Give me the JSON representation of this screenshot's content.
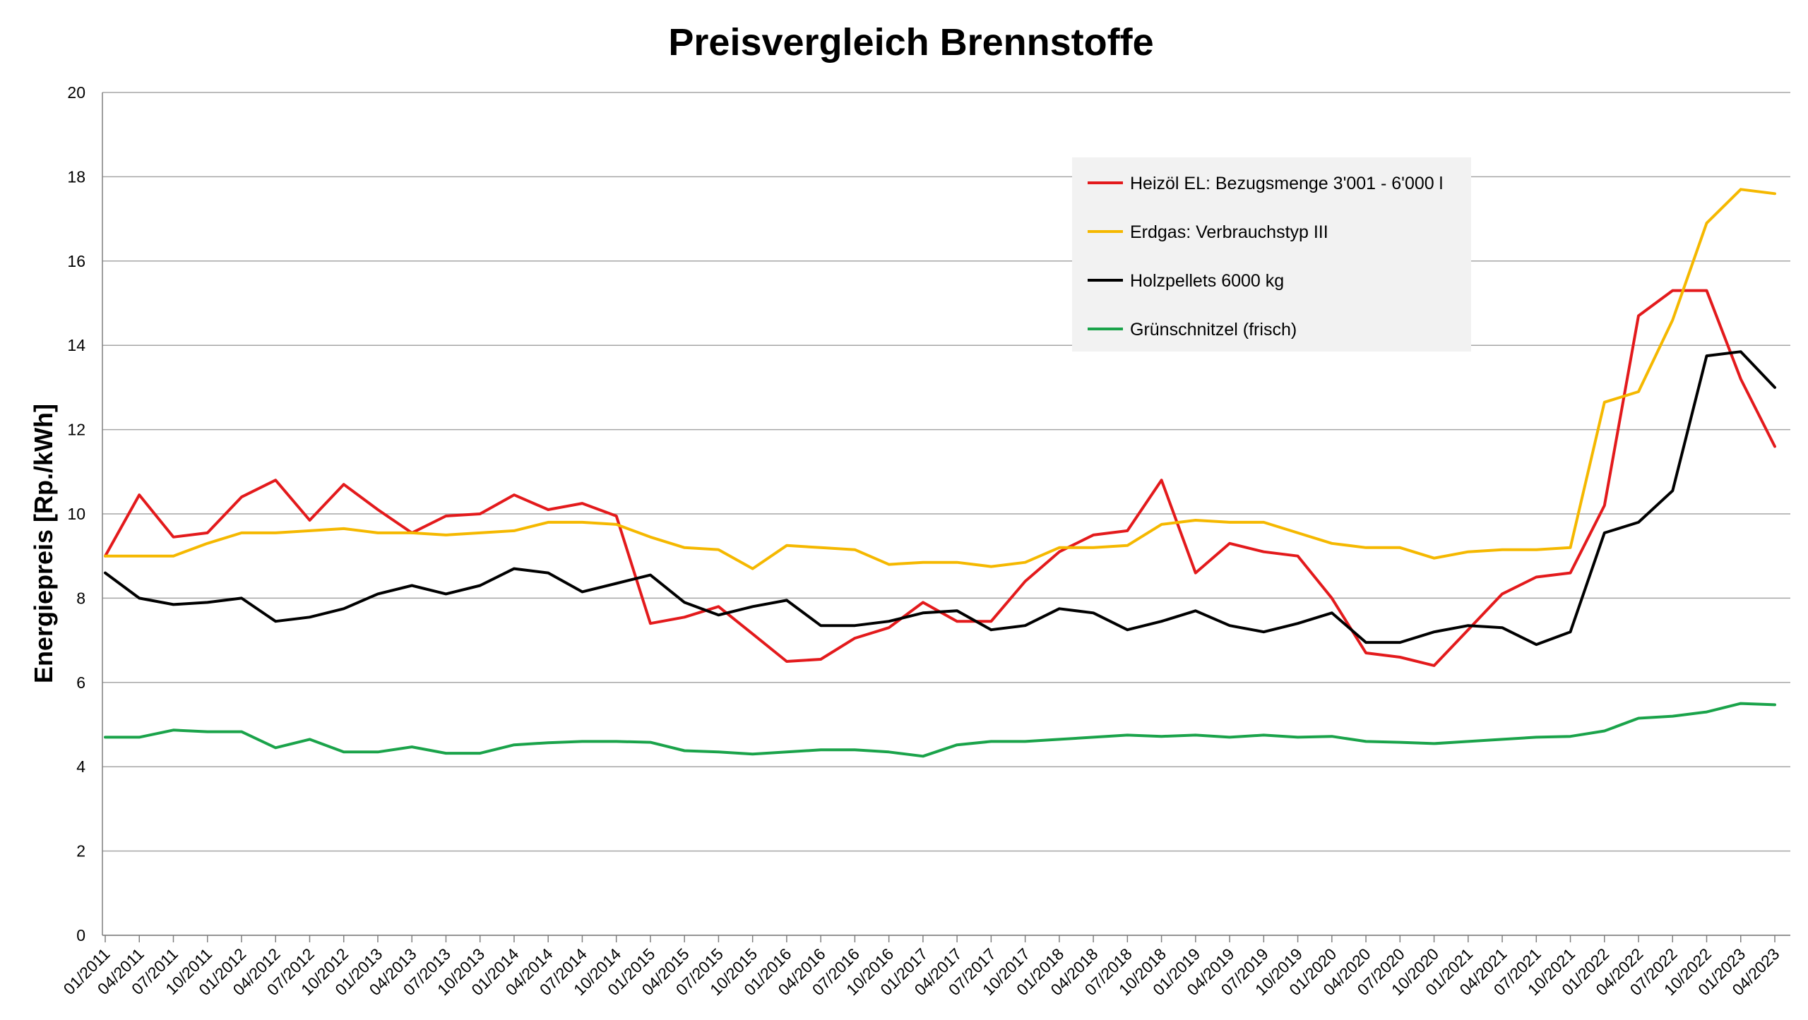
{
  "chart_data": {
    "type": "line",
    "title": "Preisvergleich Brennstoffe",
    "xlabel": "",
    "ylabel": "Energiepreis [Rp./kWh]",
    "ylim": [
      0,
      20
    ],
    "yticks": [
      "0",
      "2",
      "4",
      "6",
      "8",
      "10",
      "12",
      "14",
      "16",
      "18",
      "20"
    ],
    "grid": true,
    "legend_position": "top-right",
    "x_tick_labels": [
      "01/2011",
      "04/2011",
      "07/2011",
      "10/2011",
      "01/2012",
      "04/2012",
      "07/2012",
      "10/2012",
      "01/2013",
      "04/2013",
      "07/2013",
      "10/2013",
      "01/2014",
      "04/2014",
      "07/2014",
      "10/2014",
      "01/2015",
      "04/2015",
      "07/2015",
      "10/2015",
      "01/2016",
      "04/2016",
      "07/2016",
      "10/2016",
      "01/2017",
      "04/2017",
      "07/2017",
      "10/2017",
      "01/2018",
      "04/2018",
      "07/2018",
      "10/2018",
      "01/2019",
      "04/2019",
      "07/2019",
      "10/2019",
      "01/2020",
      "04/2020",
      "07/2020",
      "10/2020",
      "01/2021",
      "04/2021",
      "07/2021",
      "10/2021",
      "01/2022",
      "04/2022",
      "07/2022",
      "10/2022",
      "01/2023",
      "04/2023"
    ],
    "x": [
      "01/2011",
      "04/2011",
      "07/2011",
      "10/2011",
      "01/2012",
      "04/2012",
      "07/2012",
      "10/2012",
      "01/2013",
      "04/2013",
      "07/2013",
      "10/2013",
      "01/2014",
      "04/2014",
      "07/2014",
      "10/2014",
      "01/2015",
      "04/2015",
      "07/2015",
      "10/2015",
      "01/2016",
      "04/2016",
      "07/2016",
      "10/2016",
      "01/2017",
      "04/2017",
      "07/2017",
      "10/2017",
      "01/2018",
      "04/2018",
      "07/2018",
      "10/2018",
      "01/2019",
      "04/2019",
      "07/2019",
      "10/2019",
      "01/2020",
      "04/2020",
      "07/2020",
      "10/2020",
      "01/2021",
      "04/2021",
      "07/2021",
      "10/2021",
      "01/2022",
      "04/2022",
      "07/2022",
      "10/2022",
      "01/2023",
      "04/2023"
    ],
    "series": [
      {
        "name": "Heizöl EL: Bezugsmenge 3'001 - 6'000 l",
        "color": "#e31a1c",
        "values": [
          9.0,
          10.45,
          9.45,
          9.55,
          10.4,
          10.8,
          9.85,
          10.7,
          10.1,
          9.55,
          9.95,
          10.0,
          10.45,
          10.1,
          10.25,
          9.95,
          7.4,
          7.55,
          7.8,
          7.15,
          6.5,
          6.55,
          7.05,
          7.3,
          7.9,
          7.45,
          7.45,
          8.4,
          9.1,
          9.5,
          9.6,
          10.8,
          8.6,
          9.3,
          9.1,
          9.0,
          8.0,
          6.7,
          6.6,
          6.4,
          7.25,
          8.1,
          8.5,
          8.6,
          10.2,
          14.7,
          15.3,
          15.3,
          13.2,
          11.6
        ]
      },
      {
        "name": "Erdgas: Verbrauchstyp III",
        "color": "#f5b800",
        "values": [
          9.0,
          9.0,
          9.0,
          9.3,
          9.55,
          9.55,
          9.6,
          9.65,
          9.55,
          9.55,
          9.5,
          9.55,
          9.6,
          9.8,
          9.8,
          9.75,
          9.45,
          9.2,
          9.15,
          8.7,
          9.25,
          9.2,
          9.15,
          8.8,
          8.85,
          8.85,
          8.75,
          8.85,
          9.2,
          9.2,
          9.25,
          9.75,
          9.85,
          9.8,
          9.8,
          9.55,
          9.3,
          9.2,
          9.2,
          8.95,
          9.1,
          9.15,
          9.15,
          9.2,
          12.65,
          12.9,
          14.6,
          16.9,
          17.7,
          17.6
        ]
      },
      {
        "name": "Holzpellets 6000 kg",
        "color": "#000000",
        "values": [
          8.6,
          8.0,
          7.85,
          7.9,
          8.0,
          7.45,
          7.55,
          7.75,
          8.1,
          8.3,
          8.1,
          8.3,
          8.7,
          8.6,
          8.15,
          8.35,
          8.55,
          7.9,
          7.6,
          7.8,
          7.95,
          7.35,
          7.35,
          7.45,
          7.65,
          7.7,
          7.25,
          7.35,
          7.75,
          7.65,
          7.25,
          7.45,
          7.7,
          7.35,
          7.2,
          7.4,
          7.65,
          6.95,
          6.95,
          7.2,
          7.35,
          7.3,
          6.9,
          7.2,
          9.55,
          9.8,
          10.55,
          13.75,
          13.85,
          13.0
        ]
      },
      {
        "name": "Grünschnitzel (frisch)",
        "color": "#1aa34a",
        "values": [
          4.7,
          4.7,
          4.87,
          4.83,
          4.83,
          4.45,
          4.65,
          4.35,
          4.35,
          4.47,
          4.32,
          4.32,
          4.52,
          4.57,
          4.6,
          4.6,
          4.58,
          4.38,
          4.35,
          4.3,
          4.35,
          4.4,
          4.4,
          4.35,
          4.25,
          4.52,
          4.6,
          4.6,
          4.65,
          4.7,
          4.75,
          4.72,
          4.75,
          4.7,
          4.75,
          4.7,
          4.72,
          4.6,
          4.58,
          4.55,
          4.6,
          4.65,
          4.7,
          4.72,
          4.85,
          5.15,
          5.2,
          5.3,
          5.5,
          5.47
        ]
      }
    ]
  }
}
